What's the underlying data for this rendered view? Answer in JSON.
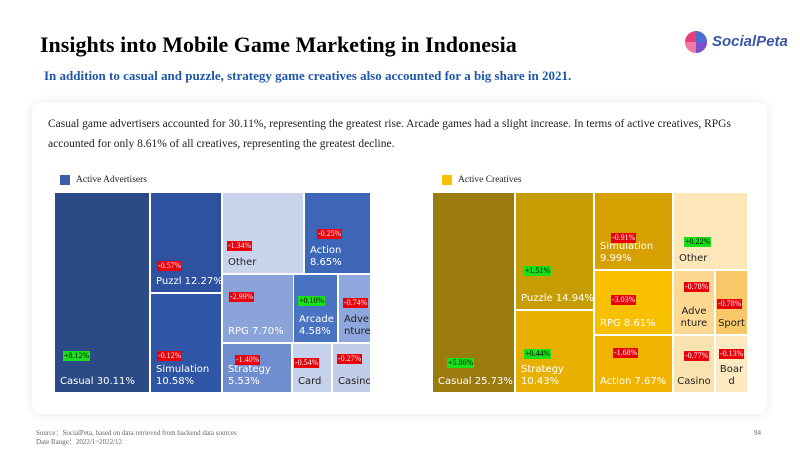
{
  "header": {
    "title": "Insights into Mobile Game Marketing in Indonesia",
    "subtitle": "In addition to casual and puzzle, strategy game creatives also accounted for a big share in 2021.",
    "logo_text": "SocialPeta"
  },
  "description": "Casual game advertisers accounted for 30.11%, representing the greatest rise. Arcade games had a slight increase. In terms of active creatives, RPGs accounted for only 8.61% of all creatives, representing the greatest decline.",
  "footer": {
    "source": "Source：SocialPeta, based on data retrieved from backend data sources",
    "date_range": "Date Range：2022/1~2022/12",
    "page_number": "94"
  },
  "chart_data": [
    {
      "type": "heatmap",
      "legend": "Active Advertisers",
      "color": "#2e5393",
      "tiles": [
        {
          "name": "Casual",
          "share": "30.11%",
          "label": "Casual 30.11%",
          "change": "+8.12%",
          "dir": "up"
        },
        {
          "name": "Puzzl",
          "share": "12.27%",
          "label": "Puzzl 12.27%",
          "change": "-0.57%",
          "dir": "down"
        },
        {
          "name": "Simulation",
          "share": "10.58%",
          "label": "Simulation\n10.58%",
          "change": "-0.12%",
          "dir": "down"
        },
        {
          "name": "Other",
          "share": "",
          "label": "Other",
          "change": "-1.34%",
          "dir": "down"
        },
        {
          "name": "Action",
          "share": "8.65%",
          "label": "Action\n8.65%",
          "change": "-0.25%",
          "dir": "down"
        },
        {
          "name": "RPG",
          "share": "7.70%",
          "label": "RPG 7.70%",
          "change": "-2.99%",
          "dir": "down"
        },
        {
          "name": "Arcade",
          "share": "4.58%",
          "label": "Arcade\n4.58%",
          "change": "+0.10%",
          "dir": "up"
        },
        {
          "name": "Adventure",
          "share": "",
          "label": "Adve\nnture",
          "change": "-0.74%",
          "dir": "down"
        },
        {
          "name": "Strategy",
          "share": "5.53%",
          "label": "Strategy\n5.53%",
          "change": "-1.40%",
          "dir": "down"
        },
        {
          "name": "Card",
          "share": "",
          "label": "Card",
          "change": "-0.54%",
          "dir": "down"
        },
        {
          "name": "Casino",
          "share": "",
          "label": "Casino",
          "change": "-0.27%",
          "dir": "down"
        }
      ]
    },
    {
      "type": "heatmap",
      "legend": "Active Creatives",
      "color": "#f5b800",
      "tiles": [
        {
          "name": "Casual",
          "share": "25.73%",
          "label": "Casual 25.73%",
          "change": "+5.86%",
          "dir": "up"
        },
        {
          "name": "Puzzle",
          "share": "14.94%",
          "label": "Puzzle 14.94%",
          "change": "+1.51%",
          "dir": "up"
        },
        {
          "name": "Strategy",
          "share": "10.43%",
          "label": "Strategy\n10.43%",
          "change": "+0.44%",
          "dir": "up"
        },
        {
          "name": "Simulation",
          "share": "9.99%",
          "label": "Simulation\n9.99%",
          "change": "-0.91%",
          "dir": "down"
        },
        {
          "name": "Other",
          "share": "",
          "label": "Other",
          "change": "+0.22%",
          "dir": "up"
        },
        {
          "name": "RPG",
          "share": "8.61%",
          "label": "RPG 8.61%",
          "change": "-3.03%",
          "dir": "down"
        },
        {
          "name": "Adventure",
          "share": "",
          "label": "Adve\nnture",
          "change": "-0.78%",
          "dir": "down"
        },
        {
          "name": "Sport",
          "share": "",
          "label": "Sport",
          "change": "-0.78%",
          "dir": "down"
        },
        {
          "name": "Action",
          "share": "7.67%",
          "label": "Action 7.67%",
          "change": "-1.68%",
          "dir": "down"
        },
        {
          "name": "Casino",
          "share": "",
          "label": "Casino",
          "change": "-0.77%",
          "dir": "down"
        },
        {
          "name": "Board",
          "share": "",
          "label": "Boar\nd",
          "change": "-0.13%",
          "dir": "down"
        }
      ]
    }
  ]
}
